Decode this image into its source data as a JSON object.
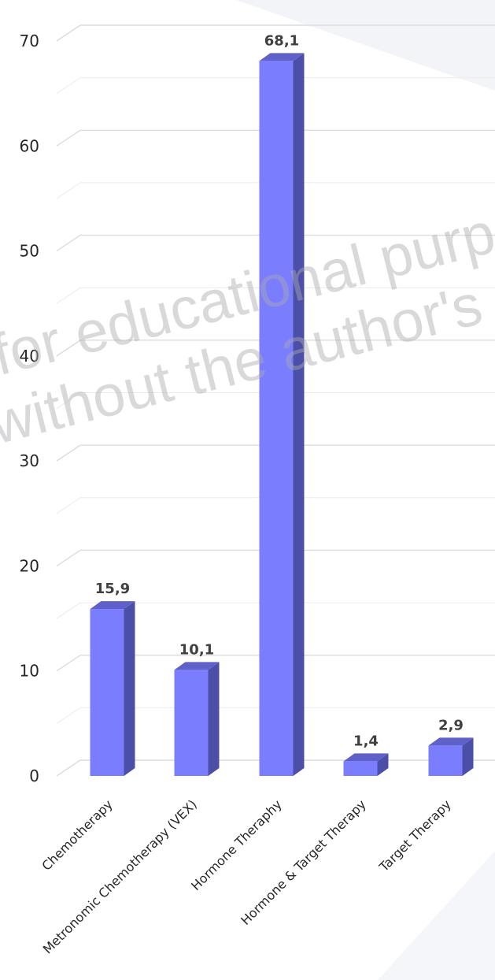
{
  "chart_data": {
    "type": "bar",
    "categories": [
      "Chemotherapy",
      "Metronomic Chemotherapy (VEX)",
      "Hormone Theraphy",
      "Hormone & Target Therapy",
      "Target Therapy"
    ],
    "values": [
      15.9,
      10.1,
      68.1,
      1.4,
      2.9
    ],
    "value_labels": [
      "15,9",
      "10,1",
      "68,1",
      "1,4",
      "2,9"
    ],
    "yticks": [
      0,
      10,
      20,
      30,
      40,
      50,
      60,
      70
    ],
    "ylim": [
      0,
      70
    ],
    "title": "",
    "xlabel": "",
    "ylabel": "",
    "grid": true,
    "style": "3d-column",
    "colors": {
      "bar_front": "#7b7dff",
      "bar_side": "#4c4fa8",
      "bar_top": "#5f61c8",
      "grid": "#e4e4e4",
      "label": "#404040"
    }
  },
  "watermark": {
    "line1": "for educational purp",
    "line2": "without the author's p"
  }
}
